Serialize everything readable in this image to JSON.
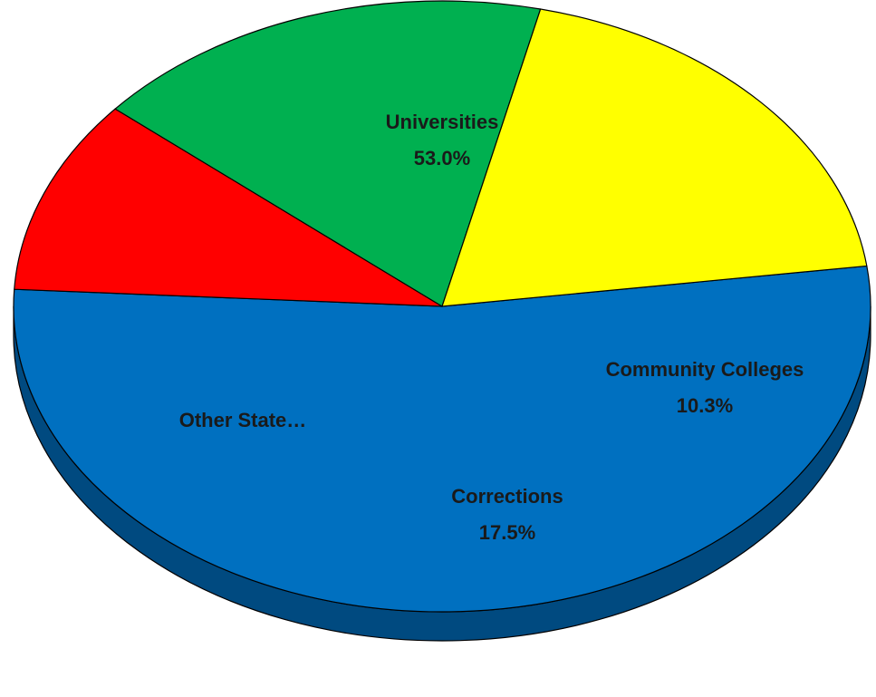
{
  "chart_data": {
    "type": "pie",
    "style": "3d",
    "slices": [
      {
        "label": "Universities",
        "percent_label": "53.0%",
        "value": 53.0,
        "color": "#0070C0",
        "side_color": "#004a80"
      },
      {
        "label": "Community Colleges",
        "percent_label": "10.3%",
        "value": 10.3,
        "color": "#FF0000",
        "side_color": "#8a0000"
      },
      {
        "label": "Corrections",
        "percent_label": "17.5%",
        "value": 17.5,
        "color": "#00B050",
        "side_color": "#005a28"
      },
      {
        "label": "Other State…",
        "percent_label": "",
        "value": 19.2,
        "color": "#FFFF00",
        "side_color": "#b3a800"
      }
    ]
  }
}
